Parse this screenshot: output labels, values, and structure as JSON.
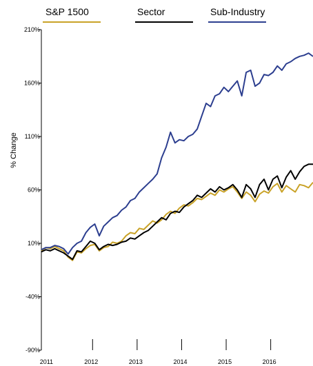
{
  "chart_data": {
    "type": "line",
    "ylabel": "% Change",
    "ylim": [
      -90,
      210
    ],
    "yticks": [
      "210%",
      "160%",
      "110%",
      "60%",
      "10%",
      "-40%",
      "-90%"
    ],
    "ytick_values": [
      210,
      160,
      110,
      60,
      10,
      -40,
      -90
    ],
    "xticks": [
      "2011",
      "2012",
      "2013",
      "2014",
      "2015",
      "2016"
    ],
    "xtick_values": [
      2011,
      2012,
      2013,
      2014,
      2015,
      2016
    ],
    "legend_position": "top",
    "series": [
      {
        "name": "S&P 1500",
        "color": "#c9a227",
        "x": [
          2010.8,
          2010.9,
          2011.0,
          2011.1,
          2011.2,
          2011.3,
          2011.4,
          2011.5,
          2011.6,
          2011.7,
          2011.8,
          2011.9,
          2012.0,
          2012.1,
          2012.2,
          2012.3,
          2012.4,
          2012.5,
          2012.6,
          2012.7,
          2012.8,
          2012.9,
          2013.0,
          2013.1,
          2013.2,
          2013.3,
          2013.4,
          2013.5,
          2013.6,
          2013.7,
          2013.8,
          2013.9,
          2014.0,
          2014.1,
          2014.2,
          2014.3,
          2014.4,
          2014.5,
          2014.6,
          2014.7,
          2014.8,
          2014.9,
          2015.0,
          2015.1,
          2015.2,
          2015.3,
          2015.4,
          2015.5,
          2015.6,
          2015.7,
          2015.8,
          2015.9,
          2016.0,
          2016.1,
          2016.2,
          2016.3,
          2016.4,
          2016.5,
          2016.6,
          2016.7,
          2016.8,
          2016.9
        ],
        "values": [
          3,
          6,
          5,
          7,
          5,
          3,
          -3,
          -6,
          2,
          1,
          5,
          8,
          9,
          3,
          6,
          7,
          11,
          10,
          12,
          17,
          20,
          19,
          24,
          23,
          27,
          31,
          29,
          32,
          37,
          40,
          38,
          43,
          46,
          45,
          48,
          52,
          51,
          54,
          57,
          55,
          60,
          58,
          61,
          63,
          58,
          52,
          58,
          55,
          49,
          56,
          59,
          57,
          63,
          66,
          58,
          64,
          61,
          58,
          65,
          64,
          62,
          67
        ]
      },
      {
        "name": "Sector",
        "color": "#000000",
        "x": [
          2010.8,
          2010.9,
          2011.0,
          2011.1,
          2011.2,
          2011.3,
          2011.4,
          2011.5,
          2011.6,
          2011.7,
          2011.8,
          2011.9,
          2012.0,
          2012.1,
          2012.2,
          2012.3,
          2012.4,
          2012.5,
          2012.6,
          2012.7,
          2012.8,
          2012.9,
          2013.0,
          2013.1,
          2013.2,
          2013.3,
          2013.4,
          2013.5,
          2013.6,
          2013.7,
          2013.8,
          2013.9,
          2014.0,
          2014.1,
          2014.2,
          2014.3,
          2014.4,
          2014.5,
          2014.6,
          2014.7,
          2014.8,
          2014.9,
          2015.0,
          2015.1,
          2015.2,
          2015.3,
          2015.4,
          2015.5,
          2015.6,
          2015.7,
          2015.8,
          2015.9,
          2016.0,
          2016.1,
          2016.2,
          2016.3,
          2016.4,
          2016.5,
          2016.6,
          2016.7,
          2016.8,
          2016.9
        ],
        "values": [
          2,
          4,
          3,
          5,
          3,
          1,
          -2,
          -5,
          3,
          2,
          7,
          12,
          10,
          4,
          7,
          9,
          8,
          9,
          11,
          12,
          15,
          14,
          17,
          20,
          22,
          26,
          30,
          34,
          32,
          38,
          40,
          39,
          44,
          47,
          50,
          55,
          53,
          57,
          61,
          58,
          63,
          60,
          62,
          65,
          60,
          53,
          65,
          61,
          53,
          65,
          70,
          60,
          70,
          73,
          62,
          72,
          78,
          70,
          77,
          82,
          84,
          84
        ]
      },
      {
        "name": "Sub-Industry",
        "color": "#2c3e8f",
        "x": [
          2010.8,
          2010.9,
          2011.0,
          2011.1,
          2011.2,
          2011.3,
          2011.4,
          2011.5,
          2011.6,
          2011.7,
          2011.8,
          2011.9,
          2012.0,
          2012.1,
          2012.2,
          2012.3,
          2012.4,
          2012.5,
          2012.6,
          2012.7,
          2012.8,
          2012.9,
          2013.0,
          2013.1,
          2013.2,
          2013.3,
          2013.4,
          2013.5,
          2013.6,
          2013.7,
          2013.8,
          2013.9,
          2014.0,
          2014.1,
          2014.2,
          2014.3,
          2014.4,
          2014.5,
          2014.6,
          2014.7,
          2014.8,
          2014.9,
          2015.0,
          2015.1,
          2015.2,
          2015.3,
          2015.4,
          2015.5,
          2015.6,
          2015.7,
          2015.8,
          2015.9,
          2016.0,
          2016.1,
          2016.2,
          2016.3,
          2016.4,
          2016.5,
          2016.6,
          2016.7,
          2016.8,
          2016.9
        ],
        "values": [
          4,
          6,
          6,
          8,
          7,
          5,
          0,
          6,
          10,
          12,
          20,
          25,
          28,
          17,
          26,
          30,
          34,
          36,
          41,
          44,
          50,
          52,
          58,
          62,
          66,
          70,
          75,
          90,
          100,
          114,
          104,
          107,
          106,
          110,
          112,
          117,
          129,
          141,
          138,
          148,
          150,
          156,
          152,
          157,
          162,
          148,
          170,
          172,
          157,
          160,
          168,
          167,
          170,
          176,
          172,
          178,
          180,
          183,
          185,
          186,
          188,
          185
        ]
      }
    ]
  }
}
